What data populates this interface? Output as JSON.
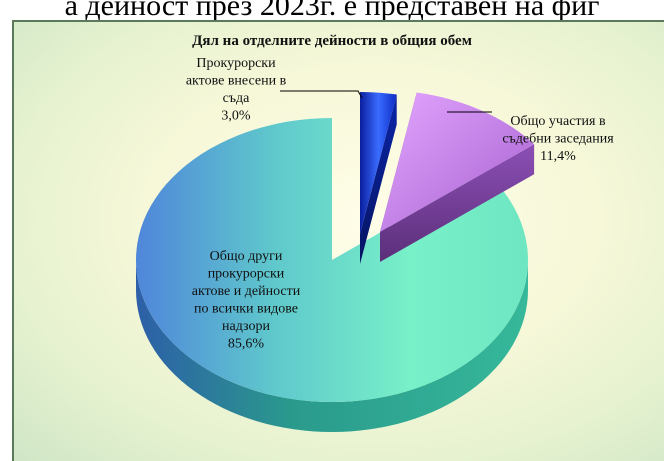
{
  "page": {
    "heading": "а дейност през 2023г. е представен на фиг"
  },
  "chart_data": {
    "type": "pie",
    "title": "Дял на отделните дейности в общия обем",
    "slices": [
      {
        "label_lines": [
          "Прокурорски",
          "актове внесени в",
          "съда",
          "3,0%"
        ],
        "value": 3.0,
        "color": "#1a3fd6"
      },
      {
        "label_lines": [
          "Общо участия в",
          "съдебни заседания",
          "11,4%"
        ],
        "value": 11.4,
        "color": "#c47ae6"
      },
      {
        "label_lines": [
          "Общо други",
          "прокурорски",
          "актове и дейности",
          "по всички видове",
          "надзори",
          "85,6%"
        ],
        "value": 85.6,
        "color": "#6fe7c4"
      }
    ],
    "legend": "none",
    "style": "3d-exploded"
  }
}
